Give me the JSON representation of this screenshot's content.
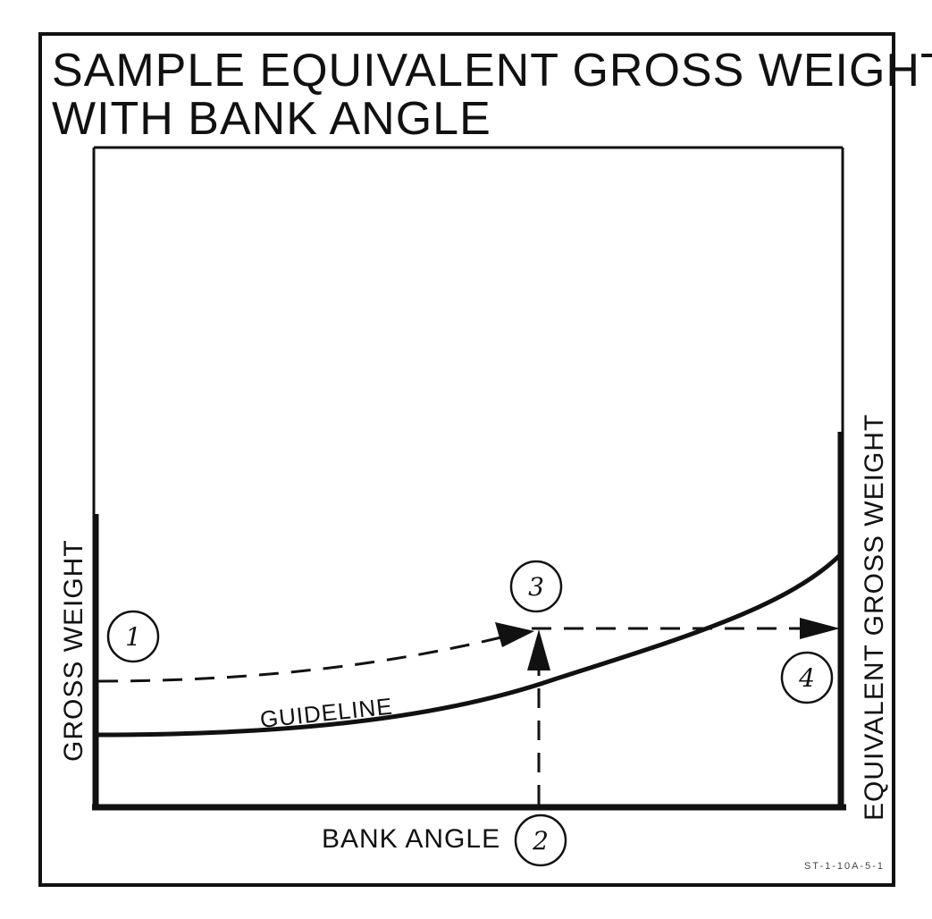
{
  "title_line1": "SAMPLE EQUIVALENT GROSS WEIGHT",
  "title_line2": "WITH BANK ANGLE",
  "left_axis_label": "GROSS WEIGHT",
  "right_axis_label": "EQUIVALENT GROSS WEIGHT",
  "bottom_axis_label": "BANK ANGLE",
  "guideline_label": "GUIDELINE",
  "steps": [
    "1",
    "2",
    "3",
    "4"
  ],
  "figure_code": "ST-1-10A-5-1",
  "colors": {
    "ink": "#111111",
    "background": "#ffffff"
  }
}
